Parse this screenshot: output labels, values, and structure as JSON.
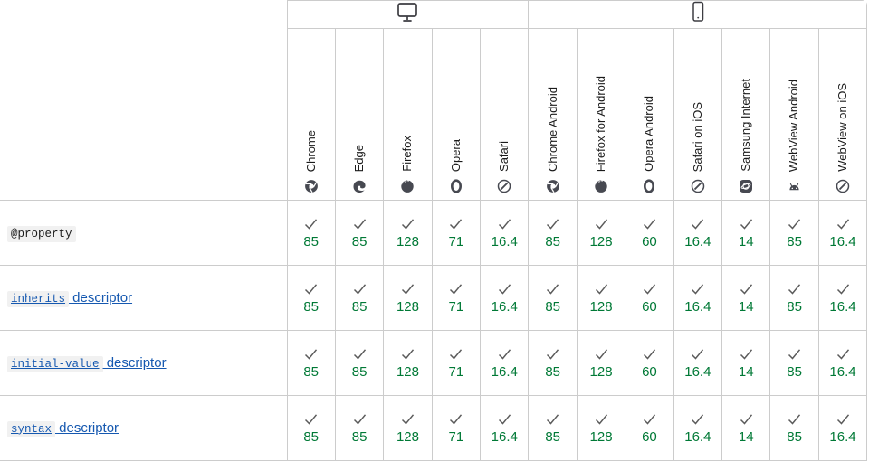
{
  "table": {
    "corner_label": "",
    "device_groups": [
      {
        "icon": "desktop",
        "span": 5
      },
      {
        "icon": "mobile",
        "span": 7
      }
    ],
    "browsers": [
      {
        "label": "Chrome",
        "icon": "chrome"
      },
      {
        "label": "Edge",
        "icon": "edge"
      },
      {
        "label": "Firefox",
        "icon": "firefox"
      },
      {
        "label": "Opera",
        "icon": "opera"
      },
      {
        "label": "Safari",
        "icon": "safari"
      },
      {
        "label": "Chrome Android",
        "icon": "chrome"
      },
      {
        "label": "Firefox for Android",
        "icon": "firefox"
      },
      {
        "label": "Opera Android",
        "icon": "opera"
      },
      {
        "label": "Safari on iOS",
        "icon": "safari"
      },
      {
        "label": "Samsung Internet",
        "icon": "samsung"
      },
      {
        "label": "WebView Android",
        "icon": "android"
      },
      {
        "label": "WebView on iOS",
        "icon": "safari"
      }
    ],
    "features": [
      {
        "label_code": "@property",
        "label_suffix": "",
        "is_link": false,
        "support": [
          {
            "status": "supported",
            "version": "85"
          },
          {
            "status": "supported",
            "version": "85"
          },
          {
            "status": "supported",
            "version": "128"
          },
          {
            "status": "supported",
            "version": "71"
          },
          {
            "status": "supported",
            "version": "16.4"
          },
          {
            "status": "supported",
            "version": "85"
          },
          {
            "status": "supported",
            "version": "128"
          },
          {
            "status": "supported",
            "version": "60"
          },
          {
            "status": "supported",
            "version": "16.4"
          },
          {
            "status": "supported",
            "version": "14"
          },
          {
            "status": "supported",
            "version": "85"
          },
          {
            "status": "supported",
            "version": "16.4"
          }
        ]
      },
      {
        "label_code": "inherits",
        "label_suffix": " descriptor",
        "is_link": true,
        "support": [
          {
            "status": "supported",
            "version": "85"
          },
          {
            "status": "supported",
            "version": "85"
          },
          {
            "status": "supported",
            "version": "128"
          },
          {
            "status": "supported",
            "version": "71"
          },
          {
            "status": "supported",
            "version": "16.4"
          },
          {
            "status": "supported",
            "version": "85"
          },
          {
            "status": "supported",
            "version": "128"
          },
          {
            "status": "supported",
            "version": "60"
          },
          {
            "status": "supported",
            "version": "16.4"
          },
          {
            "status": "supported",
            "version": "14"
          },
          {
            "status": "supported",
            "version": "85"
          },
          {
            "status": "supported",
            "version": "16.4"
          }
        ]
      },
      {
        "label_code": "initial-value",
        "label_suffix": " descriptor",
        "is_link": true,
        "support": [
          {
            "status": "supported",
            "version": "85"
          },
          {
            "status": "supported",
            "version": "85"
          },
          {
            "status": "supported",
            "version": "128"
          },
          {
            "status": "supported",
            "version": "71"
          },
          {
            "status": "supported",
            "version": "16.4"
          },
          {
            "status": "supported",
            "version": "85"
          },
          {
            "status": "supported",
            "version": "128"
          },
          {
            "status": "supported",
            "version": "60"
          },
          {
            "status": "supported",
            "version": "16.4"
          },
          {
            "status": "supported",
            "version": "14"
          },
          {
            "status": "supported",
            "version": "85"
          },
          {
            "status": "supported",
            "version": "16.4"
          }
        ]
      },
      {
        "label_code": "syntax",
        "label_suffix": " descriptor",
        "is_link": true,
        "support": [
          {
            "status": "supported",
            "version": "85"
          },
          {
            "status": "supported",
            "version": "85"
          },
          {
            "status": "supported",
            "version": "128"
          },
          {
            "status": "supported",
            "version": "71"
          },
          {
            "status": "supported",
            "version": "16.4"
          },
          {
            "status": "supported",
            "version": "85"
          },
          {
            "status": "supported",
            "version": "128"
          },
          {
            "status": "supported",
            "version": "60"
          },
          {
            "status": "supported",
            "version": "16.4"
          },
          {
            "status": "supported",
            "version": "14"
          },
          {
            "status": "supported",
            "version": "85"
          },
          {
            "status": "supported",
            "version": "16.4"
          }
        ]
      }
    ]
  },
  "colors": {
    "supported_green": "#007936",
    "link_blue": "#1558b0",
    "border_gray": "#cccccc",
    "check_gray": "#5b5b5b",
    "code_chip_bg": "#f1f1f1",
    "browser_icon_gray": "#474951",
    "device_icon_gray": "#3d3d42"
  }
}
